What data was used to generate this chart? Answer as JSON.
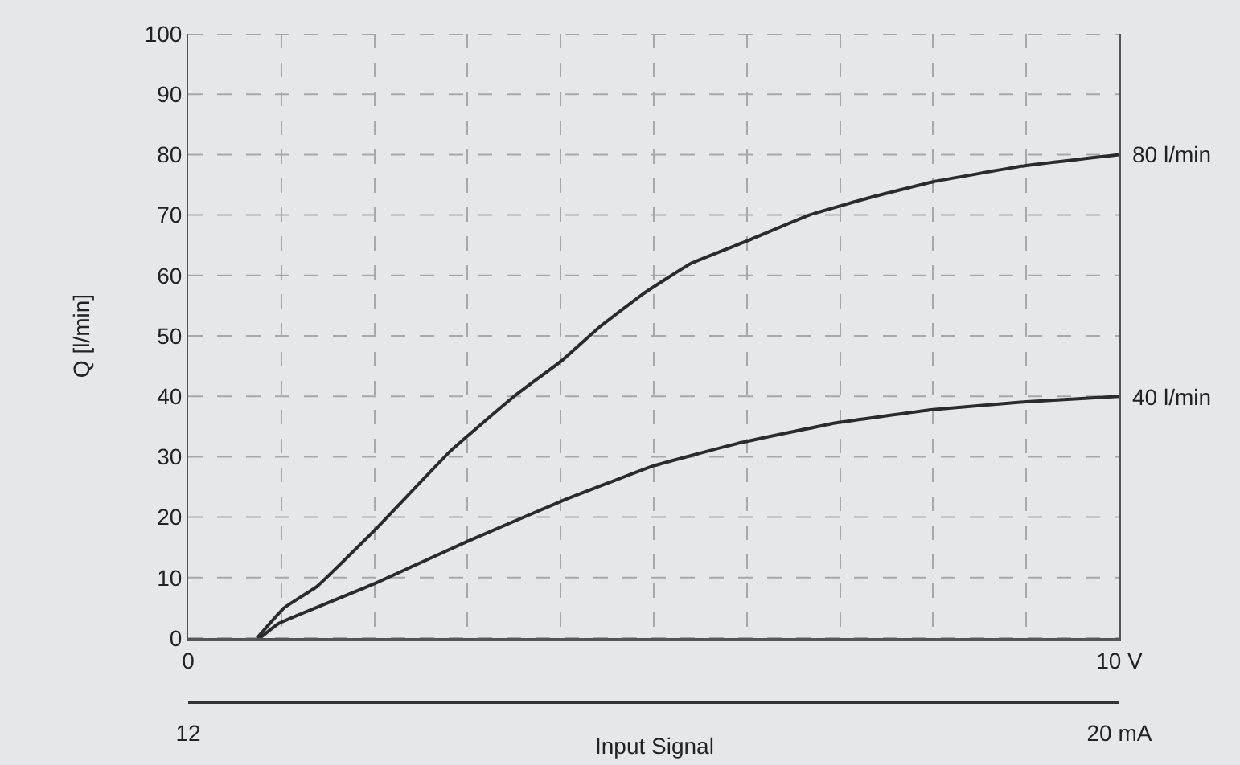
{
  "chart_data": {
    "type": "line",
    "xlabel": "Input Signal",
    "ylabel": "Q [l/min]",
    "xlim": [
      0,
      10
    ],
    "xticks": [
      0,
      {
        "value": 1,
        "label": null
      },
      {
        "value": 2,
        "label": null
      },
      {
        "value": 3,
        "label": null
      },
      {
        "value": 4,
        "label": null
      },
      {
        "value": 5,
        "label": null
      },
      {
        "value": 6,
        "label": null
      },
      {
        "value": 7,
        "label": null
      },
      {
        "value": 8,
        "label": null
      },
      {
        "value": 9,
        "label": null
      },
      {
        "value": 10,
        "label": "10 V"
      }
    ],
    "x2lim": [
      12,
      20
    ],
    "x2ticks": [
      12,
      {
        "value": 20,
        "label": "20 mA"
      }
    ],
    "ylim": [
      0,
      100
    ],
    "yticks": [
      0,
      10,
      20,
      30,
      40,
      50,
      60,
      70,
      80,
      90,
      100
    ],
    "grid": true,
    "legend": false,
    "marker": "none",
    "line_style": "solid",
    "series": [
      {
        "name": "80 l/min",
        "color": "#2b2b2b",
        "x": [
          0.74,
          1.03,
          1.38,
          2.0,
          2.82,
          3.5,
          4.02,
          4.42,
          4.89,
          5.4,
          6.0,
          6.67,
          7.3,
          8.0,
          9.0,
          10
        ],
        "values": [
          0,
          5,
          8.5,
          17.8,
          31,
          40,
          46,
          51.5,
          57,
          62,
          65.7,
          70,
          72.8,
          75.5,
          78.2,
          80
        ]
      },
      {
        "name": "40 l/min",
        "color": "#2b2b2b",
        "x": [
          0.77,
          0.97,
          2.0,
          3.0,
          4.0,
          5.0,
          5.9,
          6.96,
          8.0,
          9.0,
          10
        ],
        "values": [
          0,
          2.4,
          9,
          16,
          22.6,
          28.5,
          32.2,
          35.6,
          37.8,
          39.1,
          40
        ]
      }
    ]
  }
}
